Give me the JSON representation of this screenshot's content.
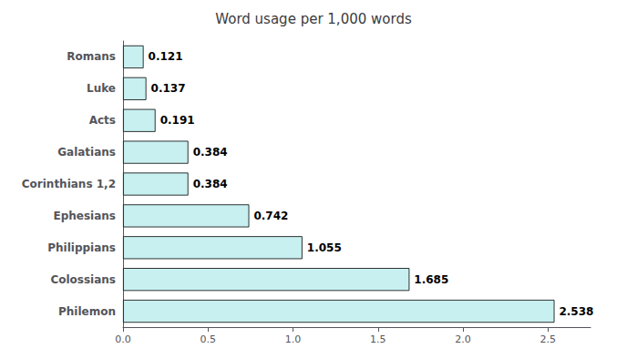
{
  "chart_data": {
    "type": "bar",
    "orientation": "horizontal",
    "title": "Word usage per 1,000 words",
    "categories": [
      "Romans",
      "Luke",
      "Acts",
      "Galatians",
      "Corinthians 1,2",
      "Ephesians",
      "Philippians",
      "Colossians",
      "Philemon"
    ],
    "values": [
      0.121,
      0.137,
      0.191,
      0.384,
      0.384,
      0.742,
      1.055,
      1.685,
      2.538
    ],
    "color": "#c8f0f0",
    "xlim": [
      0,
      2.75
    ],
    "xticks": [
      {
        "value": 0.0,
        "label": "0.0"
      },
      0.5,
      {
        "value": 1.0,
        "label": "1.0"
      },
      1.5,
      {
        "value": 2.0,
        "label": "2.0"
      },
      2.5
    ],
    "data_labels": true,
    "grid": false
  }
}
